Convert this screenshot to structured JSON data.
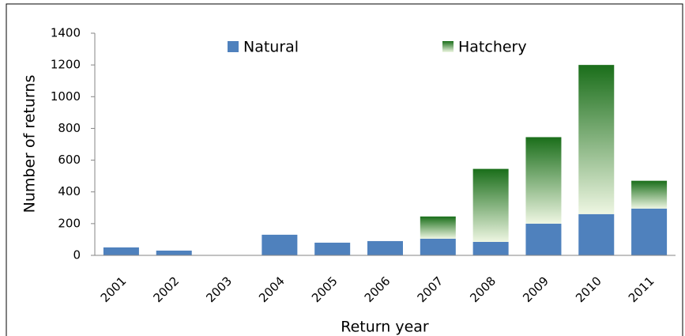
{
  "chart_data": {
    "type": "stacked_bar",
    "xlabel": "Return year",
    "ylabel": "Number of returns",
    "categories": [
      "2001",
      "2002",
      "2003",
      "2004",
      "2005",
      "2006",
      "2007",
      "2008",
      "2009",
      "2010",
      "2011"
    ],
    "series": [
      {
        "name": "Natural",
        "color": "#4f81bd",
        "values": [
          50,
          30,
          0,
          130,
          80,
          90,
          105,
          85,
          200,
          260,
          295
        ]
      },
      {
        "name": "Hatchery",
        "color": "#1a6e1a",
        "values": [
          0,
          0,
          0,
          0,
          0,
          0,
          140,
          460,
          545,
          940,
          175
        ]
      }
    ],
    "ylim": [
      0,
      1400
    ],
    "yticks": [
      0,
      200,
      400,
      600,
      800,
      1000,
      1200,
      1400
    ],
    "grid": false,
    "legend": "top"
  }
}
